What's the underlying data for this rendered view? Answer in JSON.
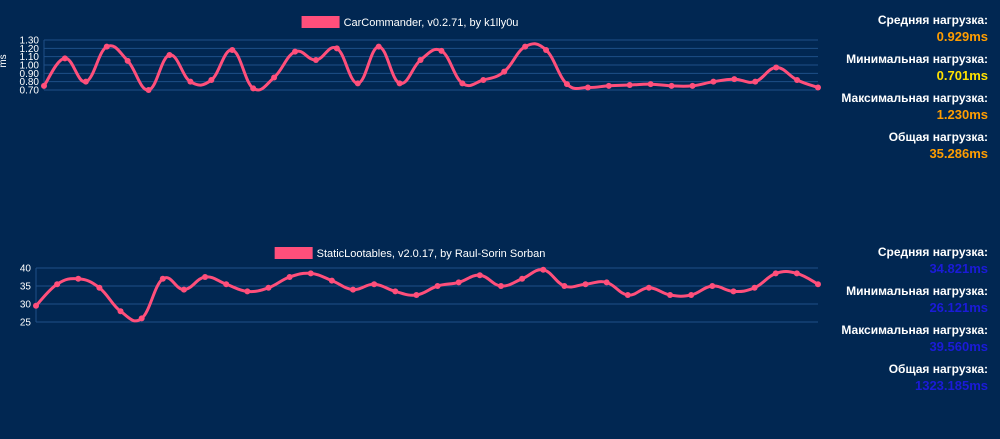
{
  "chart_data": [
    {
      "type": "line",
      "ylabel": "ms",
      "ylim": [
        0.7,
        1.3
      ],
      "yticks": [
        "1.30",
        "1.20",
        "1.10",
        "1.00",
        "0.90",
        "0.80",
        "0.70"
      ],
      "grid": true,
      "legend_position": "top",
      "line_color": "#ff4f7b",
      "series": [
        {
          "name": "CarCommander, v0.2.71, by k1lly0u",
          "values": [
            0.75,
            1.08,
            0.8,
            1.22,
            1.05,
            0.7,
            1.12,
            0.8,
            0.82,
            1.18,
            0.72,
            0.85,
            1.16,
            1.06,
            1.2,
            0.78,
            1.22,
            0.78,
            1.06,
            1.17,
            0.78,
            0.82,
            0.92,
            1.22,
            1.18,
            0.77,
            0.73,
            0.75,
            0.76,
            0.77,
            0.75,
            0.75,
            0.8,
            0.83,
            0.8,
            0.97,
            0.82,
            0.73
          ]
        }
      ]
    },
    {
      "type": "line",
      "ylim": [
        25,
        40
      ],
      "yticks": [
        "40",
        "35",
        "30",
        "25"
      ],
      "grid": true,
      "legend_position": "top",
      "line_color": "#ff4f7b",
      "series": [
        {
          "name": "StaticLootables, v2.0.17, by Raul-Sorin Sorban",
          "values": [
            29.5,
            35.5,
            37.0,
            34.5,
            28.0,
            26.0,
            37.0,
            34.0,
            37.5,
            35.5,
            33.5,
            34.5,
            37.5,
            38.5,
            36.5,
            34.0,
            35.5,
            33.5,
            32.5,
            35.0,
            36.0,
            38.0,
            35.0,
            37.0,
            39.5,
            35.0,
            35.5,
            36.0,
            32.5,
            34.5,
            32.5,
            32.5,
            35.0,
            33.5,
            34.5,
            38.5,
            38.5,
            35.5
          ]
        }
      ]
    }
  ],
  "panels": [
    {
      "stats": {
        "avg_label": "Средняя нагрузка:",
        "avg_value": "0.929ms",
        "min_label": "Минимальная нагрузка:",
        "min_value": "0.701ms",
        "max_label": "Максимальная нагрузка:",
        "max_value": "1.230ms",
        "total_label": "Общая нагрузка:",
        "total_value": "35.286ms"
      },
      "colors": {
        "avg": "#ff9d00",
        "min": "#ffe100",
        "max": "#ff9d00",
        "total": "#ff9d00"
      }
    },
    {
      "stats": {
        "avg_label": "Средняя нагрузка:",
        "avg_value": "34.821ms",
        "min_label": "Минимальная нагрузка:",
        "min_value": "26.121ms",
        "max_label": "Максимальная нагрузка:",
        "max_value": "39.560ms",
        "total_label": "Общая нагрузка:",
        "total_value": "1323.185ms"
      },
      "colors": {
        "avg": "#1b1bd8",
        "min": "#1b1bd8",
        "max": "#1b1bd8",
        "total": "#1b1bd8"
      }
    }
  ]
}
